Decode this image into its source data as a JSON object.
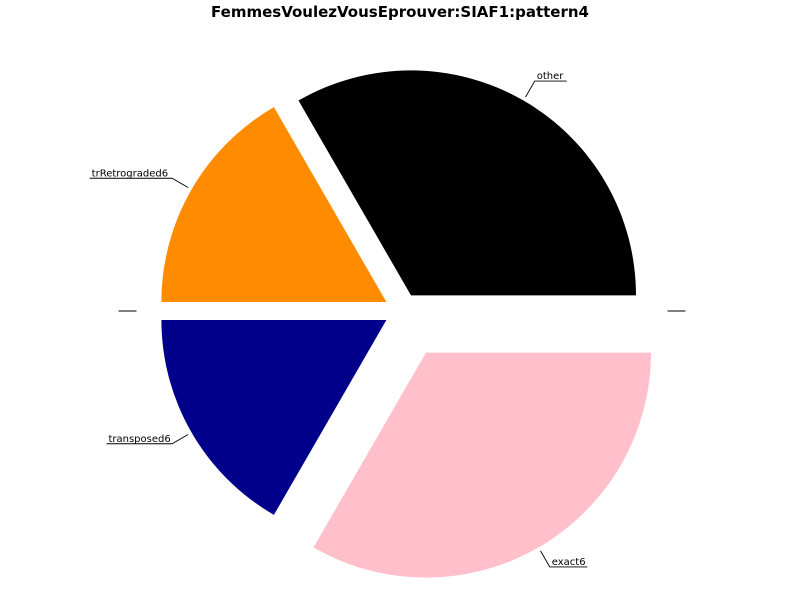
{
  "chart_data": {
    "type": "pie",
    "title": "FemmesVoulezVousEprouver:SIAF1:pattern4",
    "slices": [
      {
        "label": "other",
        "value": 1,
        "color": "#000000",
        "exploded": false
      },
      {
        "label": "trRetrograded6",
        "value": 0.5,
        "color": "#ff8c00",
        "exploded": false
      },
      {
        "label": "",
        "value": 0,
        "color": "#ffffff",
        "exploded": false
      },
      {
        "label": "transposed6",
        "value": 0.5,
        "color": "#00008b",
        "exploded": false
      },
      {
        "label": "exact6",
        "value": 1,
        "color": "#ffc0cb",
        "exploded": true
      },
      {
        "label": "",
        "value": 0,
        "color": "#ffffff",
        "exploded": false
      }
    ],
    "start_angle_deg": 0,
    "direction": "counterclockwise",
    "legend": "none"
  }
}
